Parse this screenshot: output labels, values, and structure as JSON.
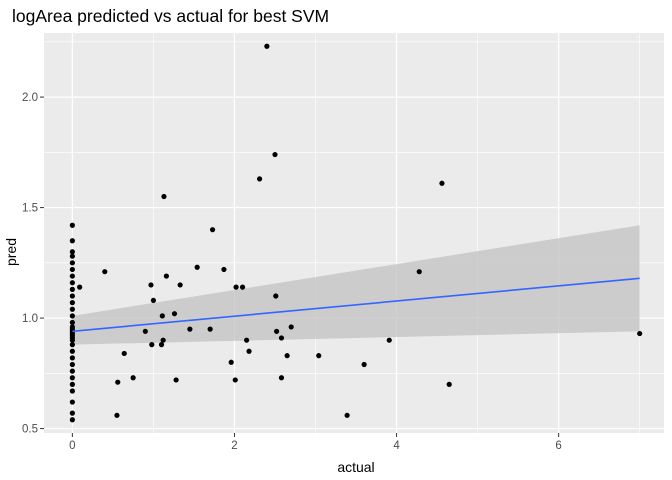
{
  "chart_data": {
    "type": "scatter",
    "title": "logArea predicted vs actual for best SVM",
    "xlabel": "actual",
    "ylabel": "pred",
    "xlim": [
      -0.35,
      7.3
    ],
    "ylim": [
      0.48,
      2.29
    ],
    "x_ticks": [
      0,
      2,
      4,
      6
    ],
    "x_tick_labels": [
      "0",
      "2",
      "4",
      "6"
    ],
    "y_ticks": [
      0.5,
      1.0,
      1.5,
      2.0
    ],
    "y_tick_labels": [
      "0.5",
      "1.0",
      "1.5",
      "2.0"
    ],
    "x_minor": [
      1,
      3,
      5,
      7
    ],
    "y_minor": [
      0.75,
      1.25,
      1.75,
      2.25
    ],
    "grid": true,
    "background": "#ebebeb",
    "grid_color": "#ffffff",
    "point_color": "#000000",
    "smooth": {
      "method": "linear fit with confidence band",
      "color": "#3366ff",
      "band_color": "#bfbfbf",
      "x": [
        0,
        7
      ],
      "fit": [
        0.94,
        1.18
      ],
      "lower": [
        0.88,
        0.94
      ],
      "upper": [
        1.01,
        1.42
      ]
    },
    "points": [
      {
        "x": 0,
        "y": 1.42
      },
      {
        "x": 0,
        "y": 1.35
      },
      {
        "x": 0,
        "y": 1.3
      },
      {
        "x": 0,
        "y": 1.28
      },
      {
        "x": 0,
        "y": 1.25
      },
      {
        "x": 0,
        "y": 1.22
      },
      {
        "x": 0,
        "y": 1.19
      },
      {
        "x": 0,
        "y": 1.16
      },
      {
        "x": 0,
        "y": 1.13
      },
      {
        "x": 0,
        "y": 1.1
      },
      {
        "x": 0,
        "y": 1.07
      },
      {
        "x": 0,
        "y": 1.04
      },
      {
        "x": 0,
        "y": 1.01
      },
      {
        "x": 0,
        "y": 0.98
      },
      {
        "x": 0,
        "y": 0.96
      },
      {
        "x": 0,
        "y": 0.95
      },
      {
        "x": 0,
        "y": 0.94
      },
      {
        "x": 0,
        "y": 0.93
      },
      {
        "x": 0,
        "y": 0.92
      },
      {
        "x": 0,
        "y": 0.91
      },
      {
        "x": 0,
        "y": 0.9
      },
      {
        "x": 0,
        "y": 0.88
      },
      {
        "x": 0,
        "y": 0.85
      },
      {
        "x": 0,
        "y": 0.82
      },
      {
        "x": 0,
        "y": 0.79
      },
      {
        "x": 0,
        "y": 0.76
      },
      {
        "x": 0,
        "y": 0.73
      },
      {
        "x": 0,
        "y": 0.7
      },
      {
        "x": 0,
        "y": 0.67
      },
      {
        "x": 0,
        "y": 0.62
      },
      {
        "x": 0,
        "y": 0.57
      },
      {
        "x": 0,
        "y": 0.54
      },
      {
        "x": 0.09,
        "y": 1.14
      },
      {
        "x": 0.4,
        "y": 1.21
      },
      {
        "x": 0.55,
        "y": 0.56
      },
      {
        "x": 0.56,
        "y": 0.71
      },
      {
        "x": 0.64,
        "y": 0.84
      },
      {
        "x": 0.75,
        "y": 0.73
      },
      {
        "x": 0.9,
        "y": 0.94
      },
      {
        "x": 0.97,
        "y": 1.15
      },
      {
        "x": 0.98,
        "y": 0.88
      },
      {
        "x": 1.0,
        "y": 1.08
      },
      {
        "x": 1.1,
        "y": 0.88
      },
      {
        "x": 1.12,
        "y": 0.9
      },
      {
        "x": 1.11,
        "y": 1.01
      },
      {
        "x": 1.13,
        "y": 1.55
      },
      {
        "x": 1.16,
        "y": 1.19
      },
      {
        "x": 1.26,
        "y": 1.02
      },
      {
        "x": 1.28,
        "y": 0.72
      },
      {
        "x": 1.33,
        "y": 1.15
      },
      {
        "x": 1.45,
        "y": 0.95
      },
      {
        "x": 1.54,
        "y": 1.23
      },
      {
        "x": 1.7,
        "y": 0.95
      },
      {
        "x": 1.73,
        "y": 1.4
      },
      {
        "x": 1.87,
        "y": 1.22
      },
      {
        "x": 1.96,
        "y": 0.8
      },
      {
        "x": 2.01,
        "y": 0.72
      },
      {
        "x": 2.02,
        "y": 1.14
      },
      {
        "x": 2.1,
        "y": 1.14
      },
      {
        "x": 2.15,
        "y": 0.9
      },
      {
        "x": 2.18,
        "y": 0.85
      },
      {
        "x": 2.31,
        "y": 1.63
      },
      {
        "x": 2.4,
        "y": 2.23
      },
      {
        "x": 2.5,
        "y": 1.74
      },
      {
        "x": 2.51,
        "y": 1.1
      },
      {
        "x": 2.52,
        "y": 0.94
      },
      {
        "x": 2.58,
        "y": 0.91
      },
      {
        "x": 2.58,
        "y": 0.73
      },
      {
        "x": 2.65,
        "y": 0.83
      },
      {
        "x": 2.7,
        "y": 0.96
      },
      {
        "x": 3.04,
        "y": 0.83
      },
      {
        "x": 3.39,
        "y": 0.56
      },
      {
        "x": 3.6,
        "y": 0.79
      },
      {
        "x": 3.91,
        "y": 0.9
      },
      {
        "x": 4.28,
        "y": 1.21
      },
      {
        "x": 4.56,
        "y": 1.61
      },
      {
        "x": 4.65,
        "y": 0.7
      },
      {
        "x": 7.0,
        "y": 0.93
      }
    ]
  }
}
